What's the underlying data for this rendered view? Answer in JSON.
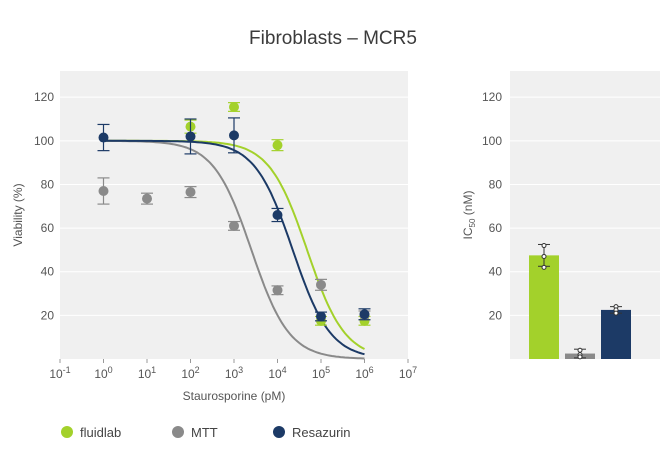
{
  "chart_data": [
    {
      "type": "scatter",
      "title": "Fibroblasts – MCR5",
      "xlabel": "Staurosporine (pM)",
      "ylabel": "Viability (%)",
      "xscale": "log10",
      "xlim_log": [
        -1,
        7
      ],
      "x_tick_labels": [
        "10-1",
        "100",
        "101",
        "102",
        "103",
        "104",
        "105",
        "106",
        "107"
      ],
      "ylim": [
        0,
        132
      ],
      "y_ticks": [
        20,
        40,
        60,
        80,
        100,
        120
      ],
      "series": [
        {
          "name": "fluidlab",
          "color": "#a3d12b",
          "points": [
            {
              "logx": 2,
              "y": 106.5,
              "err": 3
            },
            {
              "logx": 3,
              "y": 115.5,
              "err": 2
            },
            {
              "logx": 4,
              "y": 98,
              "err": 2.5
            },
            {
              "logx": 5,
              "y": 17.5,
              "err": 2
            },
            {
              "logx": 6,
              "y": 17.5,
              "err": 2
            }
          ],
          "fit": {
            "top": 100,
            "bottom": 0,
            "logIC50": 4.68,
            "hill": 1.0
          }
        },
        {
          "name": "MTT",
          "color": "#8a8a8a",
          "points": [
            {
              "logx": 0,
              "y": 77,
              "err": 6
            },
            {
              "logx": 1,
              "y": 73.5,
              "err": 2.5
            },
            {
              "logx": 2,
              "y": 76.5,
              "err": 2.5
            },
            {
              "logx": 3,
              "y": 61,
              "err": 2
            },
            {
              "logx": 4,
              "y": 31.5,
              "err": 2
            },
            {
              "logx": 5,
              "y": 34,
              "err": 2.5
            },
            {
              "logx": 6,
              "y": 20,
              "err": 2
            }
          ],
          "fit": {
            "top": 100,
            "bottom": 0,
            "logIC50": 3.4,
            "hill": 1.0
          }
        },
        {
          "name": "Resazurin",
          "color": "#1c3a66",
          "points": [
            {
              "logx": 0,
              "y": 101.5,
              "err": 6
            },
            {
              "logx": 2,
              "y": 102,
              "err": 8
            },
            {
              "logx": 3,
              "y": 102.5,
              "err": 8
            },
            {
              "logx": 4,
              "y": 66,
              "err": 3
            },
            {
              "logx": 5,
              "y": 19.5,
              "err": 2
            },
            {
              "logx": 6,
              "y": 20.5,
              "err": 2.5
            }
          ],
          "fit": {
            "top": 100,
            "bottom": 0,
            "logIC50": 4.35,
            "hill": 1.0
          }
        }
      ]
    },
    {
      "type": "bar",
      "ylabel": "IC50 (nM)",
      "ylabel_main": "IC",
      "ylabel_sub": "50",
      "ylabel_unit": " (nM)",
      "ylim": [
        0,
        132
      ],
      "y_ticks": [
        20,
        40,
        60,
        80,
        100,
        120
      ],
      "categories": [
        "fluidlab",
        "MTT",
        "Resazurin"
      ],
      "values": [
        47.5,
        2.5,
        22.5
      ],
      "errors": [
        5,
        2,
        1.5
      ],
      "replicates": [
        [
          52,
          47,
          42
        ],
        [
          4,
          2,
          1
        ],
        [
          24,
          22.5,
          21
        ]
      ],
      "colors": [
        "#a3d12b",
        "#8a8a8a",
        "#1c3a66"
      ]
    }
  ],
  "legend": [
    {
      "label": "fluidlab",
      "color": "#a3d12b"
    },
    {
      "label": "MTT",
      "color": "#8a8a8a"
    },
    {
      "label": "Resazurin",
      "color": "#1c3a66"
    }
  ]
}
